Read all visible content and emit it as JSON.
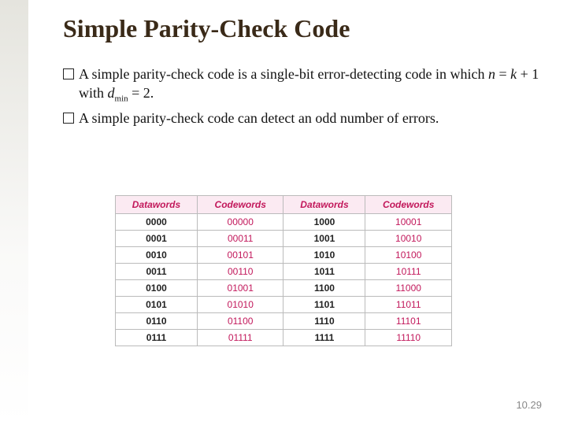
{
  "title": "Simple Parity-Check Code",
  "bullets": {
    "b1_pre": "A simple parity-check code is a single-bit error-detecting code in which ",
    "b1_n": "n",
    "b1_eq1": " = ",
    "b1_k": "k",
    "b1_plus": " + 1 with ",
    "b1_d": "d",
    "b1_min": "min",
    "b1_eq2": " = 2.",
    "b2": "A simple parity-check code can detect an odd number of errors."
  },
  "table": {
    "headers": [
      "Datawords",
      "Codewords",
      "Datawords",
      "Codewords"
    ],
    "rows": [
      [
        "0000",
        "00000",
        "1000",
        "10001"
      ],
      [
        "0001",
        "00011",
        "1001",
        "10010"
      ],
      [
        "0010",
        "00101",
        "1010",
        "10100"
      ],
      [
        "0011",
        "00110",
        "1011",
        "10111"
      ],
      [
        "0100",
        "01001",
        "1100",
        "11000"
      ],
      [
        "0101",
        "01010",
        "1101",
        "11011"
      ],
      [
        "0110",
        "01100",
        "1110",
        "11101"
      ],
      [
        "0111",
        "01111",
        "1111",
        "11110"
      ]
    ],
    "header_bg": "#fbeaf2",
    "header_color": "#c2185b",
    "codeword_color": "#c2185b",
    "border_color": "#bbbbbb"
  },
  "page_number": "10.29"
}
